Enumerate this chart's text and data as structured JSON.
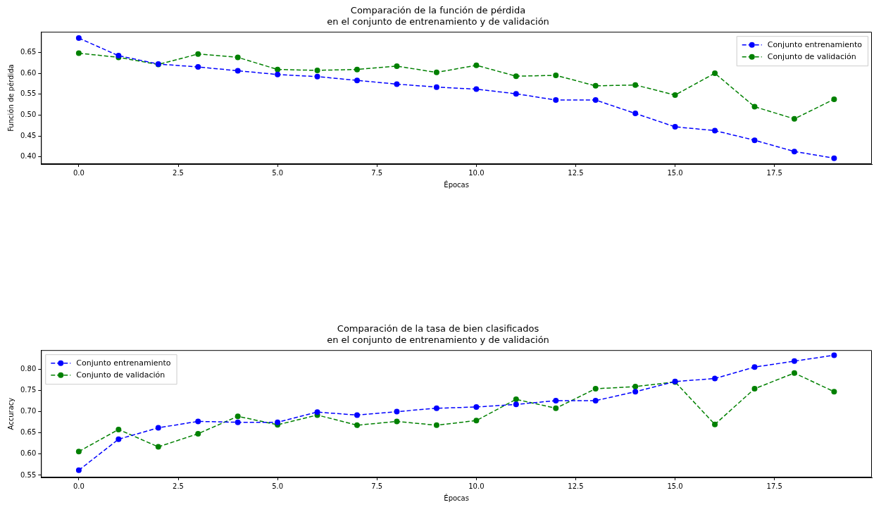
{
  "chart_data": [
    {
      "type": "line",
      "title": "Comparación de la función de pérdida\nen el conjunto de entrenamiento y de validación",
      "xlabel": "Épocas",
      "ylabel": "Función de pérdida",
      "x": [
        0,
        1,
        2,
        3,
        4,
        5,
        6,
        7,
        8,
        9,
        10,
        11,
        12,
        13,
        14,
        15,
        16,
        17,
        18,
        19
      ],
      "series": [
        {
          "name": "Conjunto entrenamiento",
          "color": "#0000ff",
          "values": [
            0.684,
            0.642,
            0.622,
            0.615,
            0.606,
            0.597,
            0.592,
            0.583,
            0.574,
            0.567,
            0.562,
            0.551,
            0.536,
            0.536,
            0.504,
            0.472,
            0.463,
            0.44,
            0.413,
            0.397
          ]
        },
        {
          "name": "Conjunto de validación",
          "color": "#008000",
          "values": [
            0.648,
            0.638,
            0.621,
            0.646,
            0.638,
            0.609,
            0.607,
            0.609,
            0.617,
            0.602,
            0.619,
            0.593,
            0.595,
            0.57,
            0.572,
            0.548,
            0.6,
            0.52,
            0.491,
            0.538
          ]
        }
      ],
      "xlim": [
        -0.95,
        19.95
      ],
      "ylim": [
        0.383,
        0.699
      ],
      "xticks": [
        {
          "value": 0,
          "label": "0.0"
        },
        {
          "value": 2.5,
          "label": "2.5"
        },
        {
          "value": 5,
          "label": "5.0"
        },
        {
          "value": 7.5,
          "label": "7.5"
        },
        {
          "value": 10,
          "label": "10.0"
        },
        {
          "value": 12.5,
          "label": "12.5"
        },
        {
          "value": 15,
          "label": "15.0"
        },
        {
          "value": 17.5,
          "label": "17.5"
        }
      ],
      "yticks": [
        {
          "value": 0.4,
          "label": "0.40"
        },
        {
          "value": 0.45,
          "label": "0.45"
        },
        {
          "value": 0.5,
          "label": "0.50"
        },
        {
          "value": 0.55,
          "label": "0.55"
        },
        {
          "value": 0.6,
          "label": "0.60"
        },
        {
          "value": 0.65,
          "label": "0.65"
        }
      ],
      "legend": "top right",
      "marker": "circle",
      "line_style": "dashed",
      "grid": false
    },
    {
      "type": "line",
      "title": "Comparación de la tasa de bien clasificados\nen el conjunto de entrenamiento y de validación",
      "xlabel": "Épocas",
      "ylabel": "Accuracy",
      "x": [
        0,
        1,
        2,
        3,
        4,
        5,
        6,
        7,
        8,
        9,
        10,
        11,
        12,
        13,
        14,
        15,
        16,
        17,
        18,
        19
      ],
      "series": [
        {
          "name": "Conjunto entrenamiento",
          "color": "#0000ff",
          "values": [
            0.562,
            0.635,
            0.662,
            0.677,
            0.675,
            0.675,
            0.699,
            0.692,
            0.7,
            0.708,
            0.711,
            0.717,
            0.726,
            0.726,
            0.747,
            0.771,
            0.778,
            0.805,
            0.819,
            0.833
          ]
        },
        {
          "name": "Conjunto de validación",
          "color": "#008000",
          "values": [
            0.606,
            0.658,
            0.617,
            0.648,
            0.689,
            0.669,
            0.692,
            0.668,
            0.677,
            0.668,
            0.679,
            0.729,
            0.708,
            0.754,
            0.759,
            0.77,
            0.67,
            0.754,
            0.791,
            0.747
          ]
        }
      ],
      "xlim": [
        -0.95,
        19.95
      ],
      "ylim": [
        0.545,
        0.845
      ],
      "xticks": [
        {
          "value": 0,
          "label": "0.0"
        },
        {
          "value": 2.5,
          "label": "2.5"
        },
        {
          "value": 5,
          "label": "5.0"
        },
        {
          "value": 7.5,
          "label": "7.5"
        },
        {
          "value": 10,
          "label": "10.0"
        },
        {
          "value": 12.5,
          "label": "12.5"
        },
        {
          "value": 15,
          "label": "15.0"
        },
        {
          "value": 17.5,
          "label": "17.5"
        }
      ],
      "yticks": [
        {
          "value": 0.55,
          "label": "0.55"
        },
        {
          "value": 0.6,
          "label": "0.60"
        },
        {
          "value": 0.65,
          "label": "0.65"
        },
        {
          "value": 0.7,
          "label": "0.70"
        },
        {
          "value": 0.75,
          "label": "0.75"
        },
        {
          "value": 0.8,
          "label": "0.80"
        }
      ],
      "legend": "top left",
      "marker": "circle",
      "line_style": "dashed",
      "grid": false
    }
  ]
}
